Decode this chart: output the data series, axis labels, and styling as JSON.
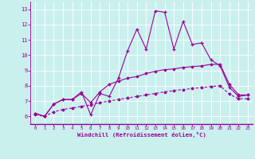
{
  "xlabel": "Windchill (Refroidissement éolien,°C)",
  "bg_color": "#caf0ee",
  "line_color": "#990099",
  "grid_color": "#ffffff",
  "xlim": [
    -0.5,
    23.5
  ],
  "ylim": [
    5.5,
    13.5
  ],
  "xticks": [
    0,
    1,
    2,
    3,
    4,
    5,
    6,
    7,
    8,
    9,
    10,
    11,
    12,
    13,
    14,
    15,
    16,
    17,
    18,
    19,
    20,
    21,
    22,
    23
  ],
  "yticks": [
    6,
    7,
    8,
    9,
    10,
    11,
    12,
    13
  ],
  "s1_x": [
    0,
    1,
    2,
    3,
    4,
    5,
    6,
    7,
    8,
    9,
    10,
    11,
    12,
    13,
    14,
    15,
    16,
    17,
    18,
    19,
    20,
    21,
    22,
    23
  ],
  "s1_y": [
    6.2,
    6.0,
    6.8,
    7.1,
    7.1,
    7.6,
    6.1,
    7.5,
    7.3,
    8.5,
    10.3,
    11.7,
    10.4,
    12.9,
    12.8,
    10.4,
    12.2,
    10.7,
    10.8,
    9.7,
    9.3,
    7.9,
    7.3,
    7.4
  ],
  "s2_x": [
    0,
    1,
    2,
    3,
    4,
    5,
    6,
    7,
    8,
    9,
    10,
    11,
    12,
    13,
    14,
    15,
    16,
    17,
    18,
    19,
    20,
    21,
    22,
    23
  ],
  "s2_y": [
    6.2,
    6.0,
    6.8,
    7.1,
    7.1,
    7.5,
    6.9,
    7.6,
    8.1,
    8.3,
    8.5,
    8.6,
    8.8,
    8.95,
    9.05,
    9.1,
    9.2,
    9.25,
    9.3,
    9.4,
    9.4,
    8.1,
    7.4,
    7.4
  ],
  "s3_x": [
    0,
    1,
    2,
    3,
    4,
    5,
    6,
    7,
    8,
    9,
    10,
    11,
    12,
    13,
    14,
    15,
    16,
    17,
    18,
    19,
    20,
    21,
    22,
    23
  ],
  "s3_y": [
    6.1,
    6.0,
    6.3,
    6.45,
    6.55,
    6.65,
    6.75,
    6.9,
    7.0,
    7.1,
    7.2,
    7.3,
    7.4,
    7.5,
    7.6,
    7.68,
    7.75,
    7.82,
    7.88,
    7.95,
    8.0,
    7.45,
    7.15,
    7.15
  ]
}
